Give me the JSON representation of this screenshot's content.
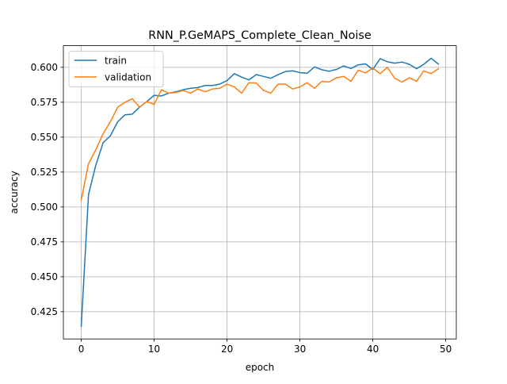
{
  "chart_data": {
    "type": "line",
    "title": "RNN_P.GeMAPS_Complete_Clean_Noise",
    "xlabel": "epoch",
    "ylabel": "accuracy",
    "xlim": [
      -2.45,
      51.45
    ],
    "ylim": [
      0.4055,
      0.6155
    ],
    "x_ticks": [
      0,
      10,
      20,
      30,
      40,
      50
    ],
    "y_ticks": [
      0.425,
      0.45,
      0.475,
      0.5,
      0.525,
      0.55,
      0.575,
      0.6
    ],
    "x_tick_labels": [
      "0",
      "10",
      "20",
      "30",
      "40",
      "50"
    ],
    "y_tick_labels": [
      "0.425",
      "0.450",
      "0.475",
      "0.500",
      "0.525",
      "0.550",
      "0.575",
      "0.600"
    ],
    "grid": true,
    "legend_position": "upper-left",
    "x": [
      0,
      1,
      2,
      3,
      4,
      5,
      6,
      7,
      8,
      9,
      10,
      11,
      12,
      13,
      14,
      15,
      16,
      17,
      18,
      19,
      20,
      21,
      22,
      23,
      24,
      25,
      26,
      27,
      28,
      29,
      30,
      31,
      32,
      33,
      34,
      35,
      36,
      37,
      38,
      39,
      40,
      41,
      42,
      43,
      44,
      45,
      46,
      47,
      48,
      49
    ],
    "series": [
      {
        "name": "train",
        "color": "#1f77b4",
        "values": [
          0.4145,
          0.509,
          0.53,
          0.546,
          0.551,
          0.561,
          0.566,
          0.5665,
          0.5715,
          0.5755,
          0.58,
          0.5795,
          0.5815,
          0.5825,
          0.584,
          0.585,
          0.5855,
          0.587,
          0.587,
          0.588,
          0.5905,
          0.5955,
          0.593,
          0.591,
          0.5948,
          0.5935,
          0.5922,
          0.5948,
          0.597,
          0.5975,
          0.5962,
          0.5958,
          0.6003,
          0.5983,
          0.5972,
          0.5985,
          0.601,
          0.5992,
          0.6018,
          0.6025,
          0.5985,
          0.6062,
          0.604,
          0.603,
          0.6038,
          0.6022,
          0.599,
          0.6022,
          0.6065,
          0.6023
        ]
      },
      {
        "name": "validation",
        "color": "#ff7f0e",
        "values": [
          0.505,
          0.531,
          0.541,
          0.5525,
          0.561,
          0.5715,
          0.575,
          0.5775,
          0.5715,
          0.5755,
          0.5735,
          0.584,
          0.5815,
          0.582,
          0.5835,
          0.5815,
          0.5845,
          0.5825,
          0.5845,
          0.585,
          0.588,
          0.586,
          0.5815,
          0.589,
          0.5888,
          0.5835,
          0.5815,
          0.588,
          0.588,
          0.5845,
          0.586,
          0.589,
          0.585,
          0.59,
          0.5895,
          0.5925,
          0.5935,
          0.59,
          0.598,
          0.596,
          0.5995,
          0.5955,
          0.6,
          0.5922,
          0.5895,
          0.5925,
          0.59,
          0.5975,
          0.5955,
          0.599
        ]
      }
    ]
  }
}
